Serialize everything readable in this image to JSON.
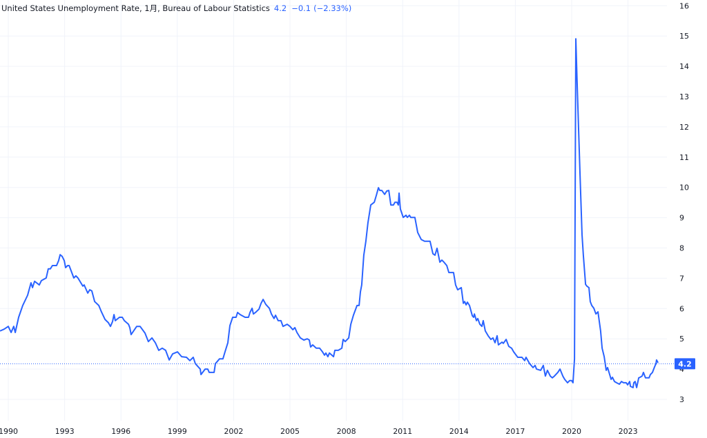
{
  "legend": {
    "title": "United States Unemployment Rate, 1月, Bureau of Labour Statistics",
    "value": "4.2",
    "change": "−0.1",
    "change_pct": "(−2.33%)"
  },
  "last_value_badge": "4.2",
  "colors": {
    "line": "#2962ff",
    "grid": "#f0f3fa",
    "text": "#131722",
    "badge_bg": "#2962ff",
    "badge_text": "#ffffff",
    "background": "#ffffff"
  },
  "chart_data": {
    "type": "line",
    "title": "United States Unemployment Rate, 1月, Bureau of Labour Statistics",
    "xlabel": "",
    "ylabel": "",
    "ylim": [
      2.2,
      16.1
    ],
    "y_ticks": [
      3,
      4,
      5,
      6,
      7,
      8,
      9,
      10,
      11,
      12,
      13,
      14,
      15,
      16
    ],
    "x_ticks": [
      "1990",
      "1993",
      "1996",
      "1999",
      "2002",
      "2005",
      "2008",
      "2011",
      "2014",
      "2017",
      "2020",
      "2023"
    ],
    "grid": true,
    "legend_position": "top-left",
    "last_value": 4.2,
    "change": -0.1,
    "change_pct": -2.33,
    "series": [
      {
        "name": "United States Unemployment Rate",
        "x": [
          1989.56,
          1989.78,
          1990.0,
          1990.15,
          1990.29,
          1990.37,
          1990.55,
          1990.77,
          1991.03,
          1991.21,
          1991.29,
          1991.4,
          1991.65,
          1991.76,
          1992.02,
          1992.13,
          1992.24,
          1992.35,
          1992.57,
          1992.68,
          1992.76,
          1992.87,
          1992.98,
          1993.05,
          1993.16,
          1993.24,
          1993.35,
          1993.49,
          1993.6,
          1993.71,
          1993.97,
          1994.04,
          1994.23,
          1994.34,
          1994.45,
          1994.6,
          1994.82,
          1994.96,
          1995.15,
          1995.33,
          1995.44,
          1995.55,
          1995.63,
          1995.7,
          1995.92,
          1996.07,
          1996.18,
          1996.4,
          1996.47,
          1996.54,
          1996.84,
          1997.02,
          1997.28,
          1997.46,
          1997.65,
          1997.83,
          1998.01,
          1998.2,
          1998.38,
          1998.57,
          1998.75,
          1999.01,
          1999.23,
          1999.49,
          1999.67,
          1999.85,
          1999.96,
          2000.22,
          2000.26,
          2000.48,
          2000.62,
          2000.7,
          2000.96,
          2001.03,
          2001.25,
          2001.43,
          2001.54,
          2001.69,
          2001.8,
          2001.95,
          2002.13,
          2002.21,
          2002.35,
          2002.61,
          2002.79,
          2002.87,
          2002.98,
          2003.05,
          2003.16,
          2003.35,
          2003.46,
          2003.57,
          2003.71,
          2003.9,
          2004.01,
          2004.15,
          2004.23,
          2004.37,
          2004.52,
          2004.63,
          2004.85,
          2005.0,
          2005.15,
          2005.26,
          2005.37,
          2005.55,
          2005.74,
          2005.92,
          2006.03,
          2006.1,
          2006.21,
          2006.4,
          2006.58,
          2006.73,
          2006.84,
          2006.91,
          2007.02,
          2007.1,
          2007.32,
          2007.39,
          2007.57,
          2007.76,
          2007.83,
          2007.94,
          2008.13,
          2008.24,
          2008.38,
          2008.57,
          2008.68,
          2008.75,
          2008.82,
          2008.93,
          2009.04,
          2009.15,
          2009.3,
          2009.49,
          2009.6,
          2009.71,
          2009.78,
          2009.89,
          2010.04,
          2010.15,
          2010.26,
          2010.37,
          2010.51,
          2010.59,
          2010.7,
          2010.77,
          2010.81,
          2010.88,
          2011.03,
          2011.18,
          2011.25,
          2011.36,
          2011.43,
          2011.65,
          2011.8,
          2011.99,
          2012.17,
          2012.46,
          2012.61,
          2012.72,
          2012.83,
          2012.98,
          2013.09,
          2013.2,
          2013.35,
          2013.46,
          2013.71,
          2013.82,
          2013.93,
          2014.12,
          2014.23,
          2014.3,
          2014.38,
          2014.45,
          2014.56,
          2014.71,
          2014.78,
          2014.82,
          2014.93,
          2015.0,
          2015.11,
          2015.22,
          2015.29,
          2015.4,
          2015.55,
          2015.7,
          2015.81,
          2015.92,
          2016.03,
          2016.1,
          2016.29,
          2016.36,
          2016.51,
          2016.65,
          2016.8,
          2016.91,
          2017.13,
          2017.35,
          2017.5,
          2017.57,
          2017.76,
          2017.94,
          2018.05,
          2018.13,
          2018.35,
          2018.49,
          2018.6,
          2018.71,
          2018.86,
          2018.97,
          2019.08,
          2019.26,
          2019.38,
          2019.53,
          2019.63,
          2019.78,
          2019.89,
          2020.0,
          2020.07,
          2020.15,
          2020.22,
          2020.29,
          2020.37,
          2020.44,
          2020.55,
          2020.62,
          2020.74,
          2020.81,
          2020.92,
          2020.99,
          2021.07,
          2021.18,
          2021.29,
          2021.4,
          2021.54,
          2021.62,
          2021.73,
          2021.84,
          2021.91,
          2021.99,
          2022.1,
          2022.17,
          2022.28,
          2022.39,
          2022.54,
          2022.65,
          2022.76,
          2022.9,
          2022.98,
          2023.09,
          2023.13,
          2023.27,
          2023.31,
          2023.38,
          2023.46,
          2023.57,
          2023.64,
          2023.75,
          2023.82,
          2023.93,
          2024.12,
          2024.19,
          2024.3,
          2024.41,
          2024.49,
          2024.52,
          2024.6
        ],
        "values": [
          5.26,
          5.32,
          5.41,
          5.21,
          5.41,
          5.21,
          5.71,
          6.1,
          6.44,
          6.85,
          6.69,
          6.9,
          6.78,
          6.92,
          7.01,
          7.31,
          7.31,
          7.42,
          7.42,
          7.58,
          7.78,
          7.72,
          7.58,
          7.35,
          7.42,
          7.42,
          7.24,
          7.01,
          7.08,
          7.01,
          6.74,
          6.78,
          6.51,
          6.62,
          6.58,
          6.23,
          6.1,
          5.89,
          5.64,
          5.53,
          5.41,
          5.57,
          5.8,
          5.6,
          5.71,
          5.71,
          5.6,
          5.48,
          5.37,
          5.14,
          5.41,
          5.41,
          5.19,
          4.91,
          5.03,
          4.87,
          4.62,
          4.69,
          4.62,
          4.3,
          4.5,
          4.57,
          4.41,
          4.39,
          4.28,
          4.39,
          4.18,
          4.0,
          3.82,
          4.0,
          4.0,
          3.89,
          3.89,
          4.18,
          4.34,
          4.34,
          4.57,
          4.87,
          5.44,
          5.71,
          5.71,
          5.87,
          5.8,
          5.71,
          5.71,
          5.87,
          6.01,
          5.82,
          5.87,
          5.98,
          6.17,
          6.3,
          6.14,
          6.01,
          5.82,
          5.67,
          5.78,
          5.6,
          5.6,
          5.41,
          5.48,
          5.41,
          5.3,
          5.37,
          5.21,
          5.03,
          4.96,
          5.0,
          4.96,
          4.73,
          4.8,
          4.69,
          4.69,
          4.57,
          4.46,
          4.53,
          4.41,
          4.53,
          4.41,
          4.62,
          4.62,
          4.69,
          4.98,
          4.91,
          5.03,
          5.48,
          5.78,
          6.1,
          6.1,
          6.55,
          6.78,
          7.76,
          8.22,
          8.83,
          9.42,
          9.51,
          9.74,
          9.99,
          9.9,
          9.9,
          9.77,
          9.88,
          9.9,
          9.42,
          9.42,
          9.51,
          9.51,
          9.42,
          9.81,
          9.29,
          9.01,
          9.08,
          9.01,
          9.08,
          9.01,
          9.01,
          8.51,
          8.28,
          8.22,
          8.22,
          7.81,
          7.76,
          7.99,
          7.53,
          7.6,
          7.53,
          7.42,
          7.19,
          7.19,
          6.78,
          6.62,
          6.69,
          6.17,
          6.23,
          6.12,
          6.21,
          6.1,
          5.76,
          5.71,
          5.82,
          5.6,
          5.67,
          5.48,
          5.41,
          5.6,
          5.26,
          5.1,
          4.98,
          5.03,
          4.87,
          5.1,
          4.8,
          4.89,
          4.85,
          4.98,
          4.75,
          4.69,
          4.57,
          4.39,
          4.39,
          4.28,
          4.39,
          4.18,
          4.05,
          4.12,
          4.0,
          3.96,
          4.12,
          3.77,
          3.96,
          3.77,
          3.71,
          3.77,
          3.89,
          4.0,
          3.77,
          3.66,
          3.55,
          3.62,
          3.62,
          3.55,
          4.34,
          14.91,
          13.46,
          11.86,
          10.49,
          8.44,
          7.76,
          6.8,
          6.74,
          6.69,
          6.23,
          6.1,
          6.01,
          5.82,
          5.89,
          5.26,
          4.69,
          4.41,
          3.96,
          4.05,
          3.89,
          3.66,
          3.73,
          3.59,
          3.55,
          3.5,
          3.59,
          3.55,
          3.55,
          3.48,
          3.59,
          3.43,
          3.39,
          3.55,
          3.59,
          3.39,
          3.71,
          3.73,
          3.77,
          3.89,
          3.71,
          3.71,
          3.82,
          3.89,
          4.07,
          4.18,
          4.3,
          4.21
        ]
      }
    ]
  }
}
